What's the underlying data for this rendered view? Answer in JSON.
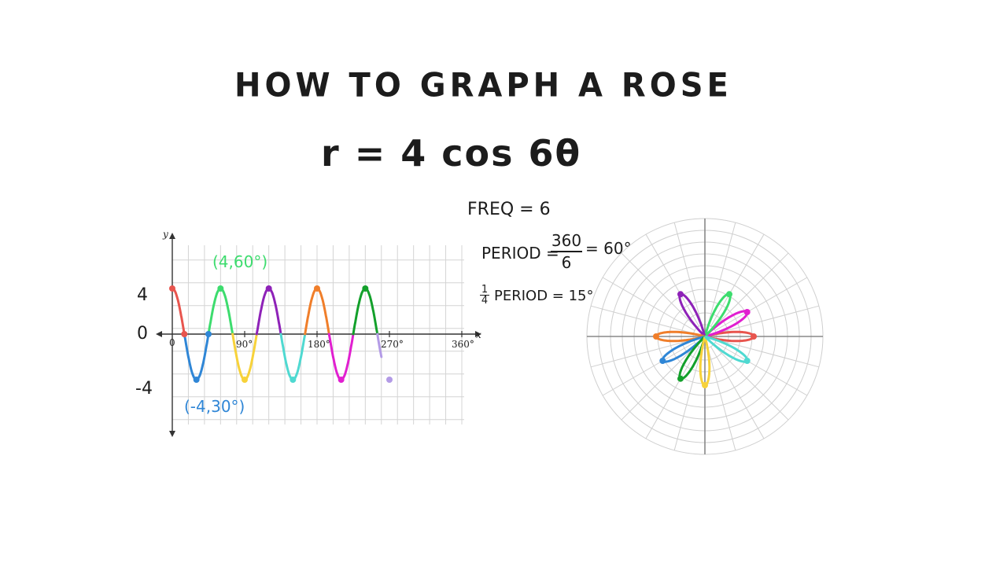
{
  "title": "HOW TO GRAPH A ROSE",
  "equation": "r = 4 cos 6θ",
  "notes": {
    "freq": "FREQ = 6",
    "period_label": "PERIOD =",
    "period_num": "360",
    "period_den": "6",
    "period_result": "= 60°",
    "quarter_num": "1",
    "quarter_den": "4",
    "quarter_text": "PERIOD = 15°"
  },
  "graph": {
    "x_axis_letter": "x",
    "y_axis_letter": "y",
    "x_ticks": [
      "0",
      "90°",
      "180°",
      "270°",
      "360°"
    ],
    "y_values": [
      "4",
      "0",
      "-4"
    ],
    "annotation_max": "(4,60°)",
    "annotation_min": "(-4,30°)"
  },
  "chart_data": {
    "type": "line",
    "function": "y = 4cos(6x)",
    "xlim": [
      0,
      360
    ],
    "ylim": [
      -6,
      6
    ],
    "x_ticks": [
      0,
      90,
      180,
      270,
      360
    ],
    "grid": true,
    "segments": [
      {
        "x": [
          0,
          15
        ],
        "color": "#e8554e"
      },
      {
        "x": [
          15,
          45
        ],
        "color": "#2f86d6"
      },
      {
        "x": [
          45,
          75
        ],
        "color": "#3ddc6e"
      },
      {
        "x": [
          75,
          105
        ],
        "color": "#f7d23a"
      },
      {
        "x": [
          105,
          135
        ],
        "color": "#8e22b8"
      },
      {
        "x": [
          135,
          165
        ],
        "color": "#4fd9d1"
      },
      {
        "x": [
          165,
          195
        ],
        "color": "#f07e2a"
      },
      {
        "x": [
          195,
          225
        ],
        "color": "#e11fd0"
      },
      {
        "x": [
          225,
          255
        ],
        "color": "#13a02b"
      },
      {
        "x": [
          255,
          260
        ],
        "color": "#b39be6"
      }
    ],
    "points": [
      {
        "x": 0,
        "y": 4,
        "color": "#e8554e"
      },
      {
        "x": 15,
        "y": 0,
        "color": "#e8554e"
      },
      {
        "x": 30,
        "y": -4,
        "color": "#2f86d6"
      },
      {
        "x": 45,
        "y": 0,
        "color": "#2f86d6"
      },
      {
        "x": 60,
        "y": 4,
        "color": "#3ddc6e"
      },
      {
        "x": 90,
        "y": -4,
        "color": "#f7d23a"
      },
      {
        "x": 120,
        "y": 4,
        "color": "#8e22b8"
      },
      {
        "x": 150,
        "y": -4,
        "color": "#4fd9d1"
      },
      {
        "x": 180,
        "y": 4,
        "color": "#f07e2a"
      },
      {
        "x": 210,
        "y": -4,
        "color": "#e11fd0"
      },
      {
        "x": 240,
        "y": 4,
        "color": "#13a02b"
      },
      {
        "x": 270,
        "y": -4,
        "color": "#b39be6"
      }
    ]
  },
  "polar_data": {
    "type": "rose",
    "amplitude": 4,
    "frequency": 6,
    "rings": 10,
    "spokes_deg": 15,
    "petals": [
      {
        "angle_deg": 0,
        "color": "#e8554e"
      },
      {
        "angle_deg": 30,
        "color": "#e11fd0"
      },
      {
        "angle_deg": 60,
        "color": "#3ddc6e"
      },
      {
        "angle_deg": 120,
        "color": "#8e22b8"
      },
      {
        "angle_deg": 180,
        "color": "#f07e2a"
      },
      {
        "angle_deg": 210,
        "color": "#2f86d6"
      },
      {
        "angle_deg": 240,
        "color": "#13a02b"
      },
      {
        "angle_deg": 270,
        "color": "#f7d23a"
      },
      {
        "angle_deg": 330,
        "color": "#4fd9d1"
      }
    ]
  }
}
